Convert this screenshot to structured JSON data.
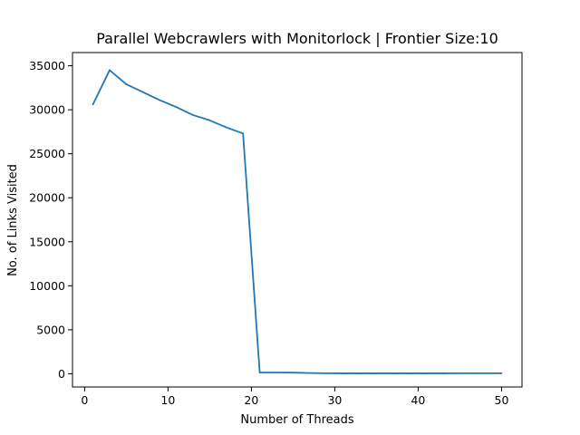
{
  "chart_data": {
    "type": "line",
    "title": "Parallel Webcrawlers with Monitorlock | Frontier Size:10",
    "xlabel": "Number of Threads",
    "ylabel": "No. of Links Visited",
    "xlim": [
      -1.45,
      52.45
    ],
    "ylim": [
      -1500,
      36500
    ],
    "xticks": [
      0,
      10,
      20,
      30,
      40,
      50
    ],
    "yticks": [
      0,
      5000,
      10000,
      15000,
      20000,
      25000,
      30000,
      35000
    ],
    "grid": false,
    "series": [
      {
        "color": "#1f77b4",
        "x": [
          1,
          3,
          5,
          7,
          9,
          11,
          13,
          15,
          17,
          19,
          21,
          23,
          25,
          27,
          29,
          31,
          33,
          35,
          37,
          39,
          41,
          43,
          45,
          47,
          49,
          50
        ],
        "y": [
          30600,
          34500,
          32900,
          32000,
          31100,
          30300,
          29400,
          28800,
          28000,
          27300,
          150,
          150,
          130,
          80,
          60,
          50,
          50,
          50,
          50,
          50,
          50,
          50,
          60,
          60,
          60,
          60
        ]
      }
    ]
  }
}
